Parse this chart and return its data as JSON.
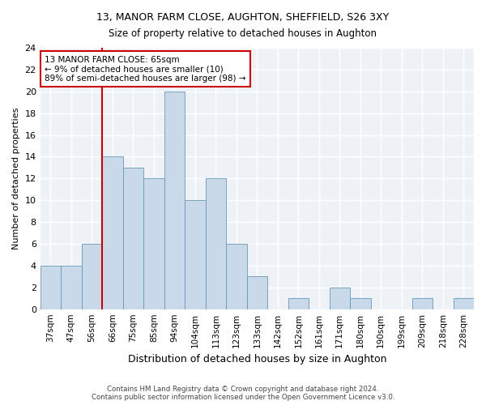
{
  "title1": "13, MANOR FARM CLOSE, AUGHTON, SHEFFIELD, S26 3XY",
  "title2": "Size of property relative to detached houses in Aughton",
  "xlabel": "Distribution of detached houses by size in Aughton",
  "ylabel": "Number of detached properties",
  "categories": [
    "37sqm",
    "47sqm",
    "56sqm",
    "66sqm",
    "75sqm",
    "85sqm",
    "94sqm",
    "104sqm",
    "113sqm",
    "123sqm",
    "133sqm",
    "142sqm",
    "152sqm",
    "161sqm",
    "171sqm",
    "180sqm",
    "190sqm",
    "199sqm",
    "209sqm",
    "218sqm",
    "228sqm"
  ],
  "values": [
    4,
    4,
    6,
    14,
    13,
    12,
    20,
    10,
    12,
    6,
    3,
    0,
    1,
    0,
    2,
    1,
    0,
    0,
    1,
    0,
    1
  ],
  "bar_color": "#c9d9ea",
  "bar_edge_color": "#6699bb",
  "vline_x": 2.5,
  "vline_color": "#cc0000",
  "annotation_text": "13 MANOR FARM CLOSE: 65sqm\n← 9% of detached houses are smaller (10)\n89% of semi-detached houses are larger (98) →",
  "annotation_box_color": "#ffffff",
  "annotation_box_edge": "#cc0000",
  "ylim": [
    0,
    24
  ],
  "yticks": [
    0,
    2,
    4,
    6,
    8,
    10,
    12,
    14,
    16,
    18,
    20,
    22,
    24
  ],
  "footer": "Contains HM Land Registry data © Crown copyright and database right 2024.\nContains public sector information licensed under the Open Government Licence v3.0.",
  "bg_color": "#ffffff",
  "plot_bg_color": "#eef2f7",
  "grid_color": "#ffffff"
}
